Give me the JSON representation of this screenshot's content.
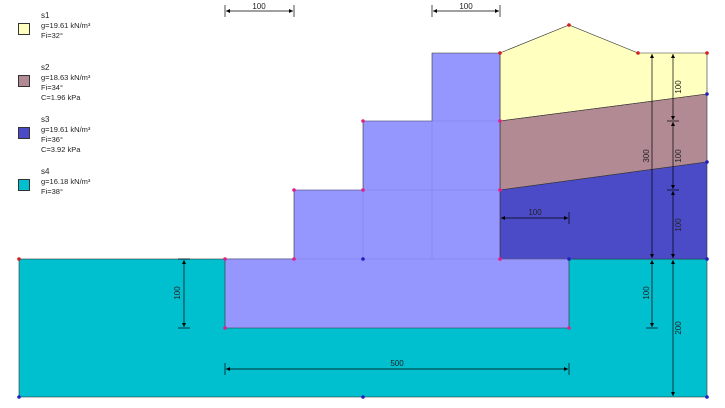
{
  "soils": [
    {
      "name": "s1",
      "g": "g=19.61  kN/m³",
      "fi": "Fi=32°",
      "c": "",
      "color": "#ffffc0"
    },
    {
      "name": "s2",
      "g": "g=18.63  kN/m³",
      "fi": "Fi=34°",
      "c": "C=1.96 kPa",
      "color": "#b28a94"
    },
    {
      "name": "s3",
      "g": "g=19.61  kN/m³",
      "fi": "Fi=36°",
      "c": "C=3.92 kPa",
      "color": "#4b4bc8"
    },
    {
      "name": "s4",
      "g": "g=16.18  kN/m³",
      "fi": "Fi=38°",
      "c": "",
      "color": "#00c0d0"
    }
  ],
  "wall_color": "#9696ff",
  "dimensions": {
    "top_left_step": "100",
    "top_right_step": "100",
    "inner_bench": "100",
    "foundation_width": "500",
    "foundation_depth": "100",
    "total_height": "300",
    "layer_s1": "100",
    "layer_s2": "100",
    "layer_s3": "100",
    "embed_right": "100",
    "base_s4": "200"
  }
}
